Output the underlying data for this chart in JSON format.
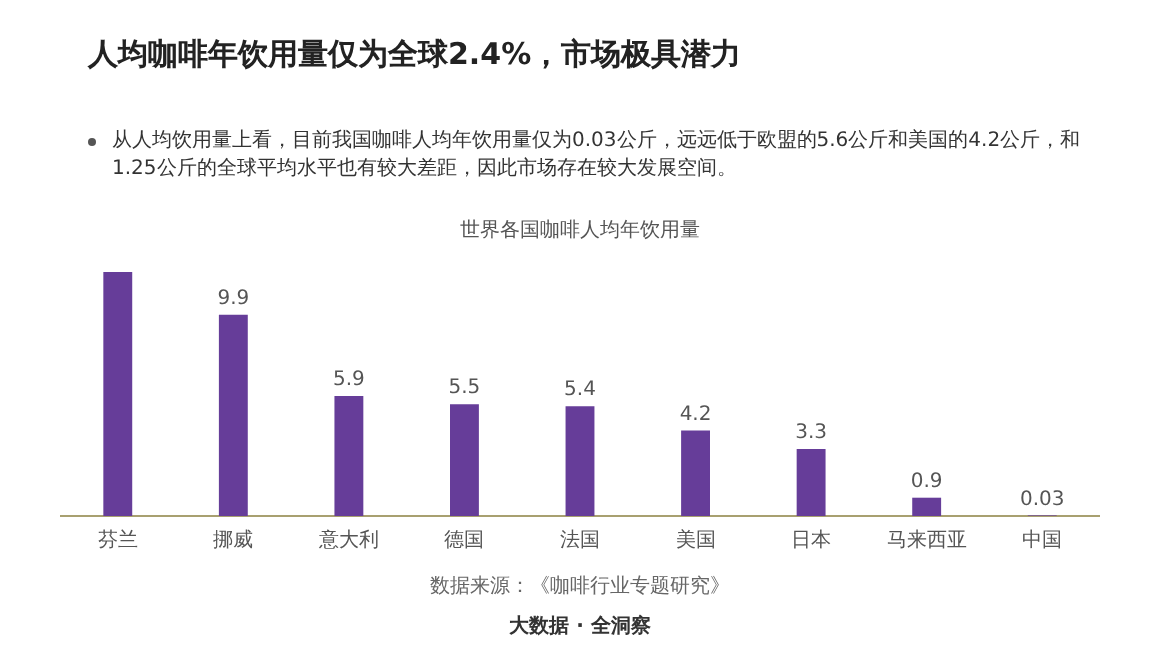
{
  "chart_data": {
    "type": "bar",
    "title": "人均咖啡年饮用量仅为全球2.4%，市场极具潜力",
    "subtitle": "从人均饮用量上看，目前我国咖啡人均年饮用量仅为0.03公斤，远远低于欧盟的5.6公斤和美国的4.2公斤，和1.25公斤的全球平均水平也有较大差距，因此市场存在较大发展空间。",
    "xlabel": "世界各国咖啡人均年饮用量",
    "categories": [
      "芬兰",
      "挪威",
      "意大利",
      "德国",
      "法国",
      "美国",
      "日本",
      "马来西亚",
      "中国"
    ],
    "values": [
      12,
      9.9,
      5.9,
      5.5,
      5.4,
      4.2,
      3.3,
      0.9,
      0.03
    ],
    "value_labels": [
      null,
      "9.9",
      "5.9",
      "5.5",
      "5.4",
      "4.2",
      "3.3",
      "0.9",
      "0.03"
    ],
    "color": "#663d99",
    "annotations": [
      "数据来源：《咖啡行业专题研究》",
      "大数据 · 全洞察"
    ],
    "grid": false,
    "legend": false
  }
}
